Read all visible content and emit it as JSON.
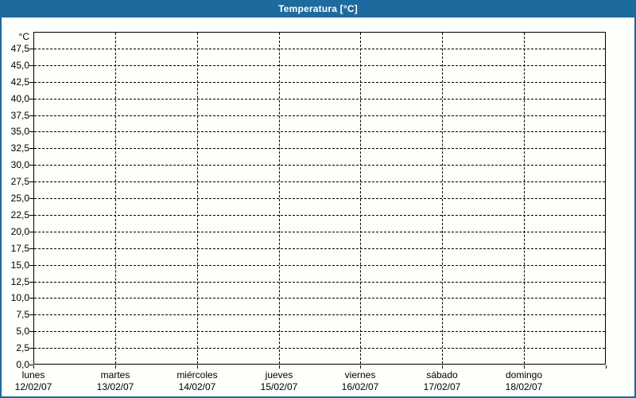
{
  "header": {
    "title": "Temperatura [°C]"
  },
  "colors": {
    "header_bg": "#1d6a9e",
    "header_text": "#ffffff",
    "background": "#fcfffa",
    "axis": "#000000",
    "grid": "#000000"
  },
  "chart_data": {
    "type": "line",
    "title": "Temperatura [°C]",
    "unit_label": "°C",
    "ylim": [
      0,
      50
    ],
    "ytick_step": 2.5,
    "grid_style": "dashed",
    "legend": "none",
    "y_ticks": [
      {
        "value": 47.5,
        "label": "47,5"
      },
      {
        "value": 45.0,
        "label": "45,0"
      },
      {
        "value": 42.5,
        "label": "42,5"
      },
      {
        "value": 40.0,
        "label": "40,0"
      },
      {
        "value": 37.5,
        "label": "37,5"
      },
      {
        "value": 35.0,
        "label": "35,0"
      },
      {
        "value": 32.5,
        "label": "32,5"
      },
      {
        "value": 30.0,
        "label": "30,0"
      },
      {
        "value": 27.5,
        "label": "27,5"
      },
      {
        "value": 25.0,
        "label": "25,0"
      },
      {
        "value": 22.5,
        "label": "22,5"
      },
      {
        "value": 20.0,
        "label": "20,0"
      },
      {
        "value": 17.5,
        "label": "17,5"
      },
      {
        "value": 15.0,
        "label": "15,0"
      },
      {
        "value": 12.5,
        "label": "12,5"
      },
      {
        "value": 10.0,
        "label": "10,0"
      },
      {
        "value": 7.5,
        "label": "7,5"
      },
      {
        "value": 5.0,
        "label": "5,0"
      },
      {
        "value": 2.5,
        "label": "2,5"
      },
      {
        "value": 0.0,
        "label": "0,0"
      }
    ],
    "x_divisions": 7,
    "x_days": [
      {
        "name": "lunes",
        "date": "12/02/07"
      },
      {
        "name": "martes",
        "date": "13/02/07"
      },
      {
        "name": "miércoles",
        "date": "14/02/07"
      },
      {
        "name": "jueves",
        "date": "15/02/07"
      },
      {
        "name": "viernes",
        "date": "16/02/07"
      },
      {
        "name": "sábado",
        "date": "17/02/07"
      },
      {
        "name": "domingo",
        "date": "18/02/07"
      }
    ],
    "series": []
  }
}
